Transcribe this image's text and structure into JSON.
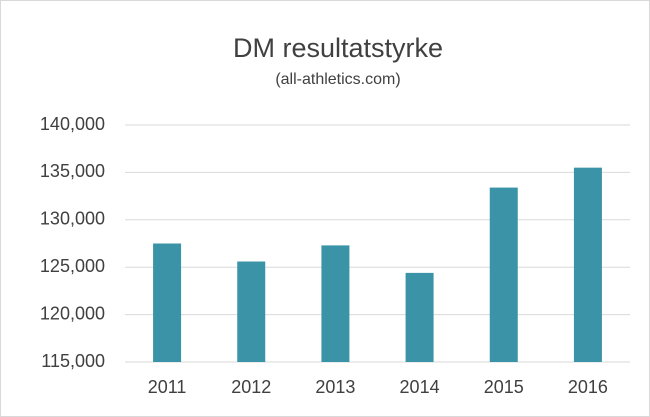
{
  "chart_data": {
    "type": "bar",
    "title": "DM resultatstyrke",
    "subtitle": "(all-athletics.com)",
    "categories": [
      "2011",
      "2012",
      "2013",
      "2014",
      "2015",
      "2016"
    ],
    "values": [
      127500,
      125600,
      127300,
      124400,
      133400,
      135500
    ],
    "color": "#3a93a6",
    "ylim": [
      115000,
      140000
    ],
    "yticks": [
      {
        "value": 115000,
        "label": "115,000"
      },
      {
        "value": 120000,
        "label": "120,000"
      },
      {
        "value": 125000,
        "label": "125,000"
      },
      {
        "value": 130000,
        "label": "130,000"
      },
      {
        "value": 135000,
        "label": "135,000"
      },
      {
        "value": 140000,
        "label": "140,000"
      }
    ],
    "grid": true
  }
}
